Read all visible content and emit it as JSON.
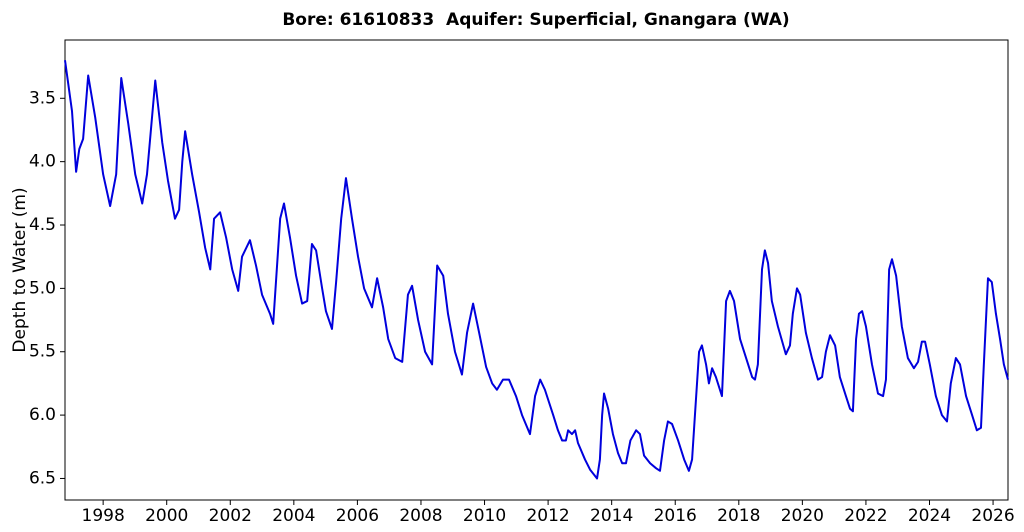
{
  "chart_data": {
    "type": "line",
    "title": "Bore: 61610833  Aquifer: Superficial, Gnangara (WA)",
    "ylabel": "Depth to Water (m)",
    "color": "#0000dd",
    "y_inverted": true,
    "grid": false,
    "xlim": [
      1996.8,
      2026.47
    ],
    "ylim": [
      3.04,
      6.67
    ],
    "xticks": [
      1998,
      2000,
      2002,
      2004,
      2006,
      2008,
      2010,
      2012,
      2014,
      2016,
      2018,
      2020,
      2022,
      2024,
      2026
    ],
    "yticks": [
      3.5,
      {
        "value": 4,
        "label": "4.0"
      },
      4.5,
      {
        "value": 5,
        "label": "5.0"
      },
      5.5,
      {
        "value": 6,
        "label": "6.0"
      },
      6.5
    ],
    "x": [
      1996.8,
      1997.02,
      1997.15,
      1997.25,
      1997.37,
      1997.53,
      1997.75,
      1998.0,
      1998.22,
      1998.41,
      1998.57,
      1998.79,
      1999.01,
      1999.23,
      1999.38,
      1999.64,
      1999.86,
      2000.04,
      2000.26,
      2000.39,
      2000.49,
      2000.58,
      2000.8,
      2001.02,
      2001.21,
      2001.37,
      2001.49,
      2001.68,
      2001.87,
      2002.06,
      2002.25,
      2002.37,
      2002.62,
      2002.81,
      2003.0,
      2003.25,
      2003.35,
      2003.57,
      2003.69,
      2003.88,
      2004.07,
      2004.26,
      2004.42,
      2004.57,
      2004.7,
      2004.89,
      2005.01,
      2005.2,
      2005.33,
      2005.49,
      2005.64,
      2005.83,
      2006.02,
      2006.21,
      2006.46,
      2006.62,
      2006.81,
      2006.97,
      2007.19,
      2007.41,
      2007.59,
      2007.72,
      2007.91,
      2008.13,
      2008.35,
      2008.51,
      2008.7,
      2008.85,
      2009.07,
      2009.29,
      2009.45,
      2009.64,
      2009.83,
      2010.05,
      2010.24,
      2010.39,
      2010.58,
      2010.77,
      2010.99,
      2011.18,
      2011.43,
      2011.59,
      2011.75,
      2011.9,
      2012.16,
      2012.31,
      2012.44,
      2012.56,
      2012.63,
      2012.75,
      2012.85,
      2012.94,
      2013.16,
      2013.32,
      2013.54,
      2013.63,
      2013.7,
      2013.76,
      2013.89,
      2014.04,
      2014.2,
      2014.33,
      2014.45,
      2014.59,
      2014.77,
      2014.89,
      2015.02,
      2015.21,
      2015.4,
      2015.52,
      2015.65,
      2015.77,
      2015.9,
      2016.09,
      2016.28,
      2016.43,
      2016.53,
      2016.62,
      2016.75,
      2016.84,
      2016.97,
      2017.06,
      2017.16,
      2017.28,
      2017.47,
      2017.6,
      2017.72,
      2017.85,
      2018.04,
      2018.23,
      2018.42,
      2018.51,
      2018.6,
      2018.73,
      2018.82,
      2018.92,
      2019.04,
      2019.23,
      2019.48,
      2019.61,
      2019.7,
      2019.83,
      2019.93,
      2020.11,
      2020.3,
      2020.49,
      2020.62,
      2020.74,
      2020.87,
      2021.03,
      2021.18,
      2021.37,
      2021.5,
      2021.59,
      2021.69,
      2021.78,
      2021.88,
      2022.0,
      2022.19,
      2022.38,
      2022.54,
      2022.63,
      2022.73,
      2022.82,
      2022.95,
      2023.13,
      2023.32,
      2023.51,
      2023.64,
      2023.76,
      2023.86,
      2024.01,
      2024.2,
      2024.39,
      2024.55,
      2024.67,
      2024.83,
      2024.96,
      2025.15,
      2025.34,
      2025.49,
      2025.62,
      2025.71,
      2025.84,
      2025.96,
      2026.09,
      2026.22,
      2026.34,
      2026.47
    ],
    "values": [
      3.2,
      3.6,
      4.08,
      3.9,
      3.82,
      3.32,
      3.65,
      4.1,
      4.35,
      4.1,
      3.34,
      3.7,
      4.1,
      4.33,
      4.1,
      3.36,
      3.85,
      4.15,
      4.45,
      4.38,
      4.0,
      3.76,
      4.1,
      4.4,
      4.68,
      4.85,
      4.45,
      4.4,
      4.6,
      4.85,
      5.02,
      4.75,
      4.62,
      4.82,
      5.05,
      5.2,
      5.28,
      4.45,
      4.33,
      4.6,
      4.9,
      5.12,
      5.1,
      4.65,
      4.7,
      5.0,
      5.18,
      5.32,
      4.95,
      4.45,
      4.13,
      4.45,
      4.75,
      5.0,
      5.15,
      4.92,
      5.15,
      5.4,
      5.55,
      5.58,
      5.05,
      4.98,
      5.25,
      5.5,
      5.6,
      4.82,
      4.9,
      5.2,
      5.5,
      5.68,
      5.35,
      5.12,
      5.35,
      5.62,
      5.75,
      5.8,
      5.72,
      5.72,
      5.85,
      6.0,
      6.15,
      5.85,
      5.72,
      5.8,
      6.0,
      6.12,
      6.2,
      6.2,
      6.12,
      6.15,
      6.12,
      6.22,
      6.35,
      6.43,
      6.5,
      6.35,
      6.0,
      5.83,
      5.95,
      6.15,
      6.3,
      6.38,
      6.38,
      6.2,
      6.12,
      6.15,
      6.32,
      6.38,
      6.42,
      6.44,
      6.2,
      6.05,
      6.07,
      6.2,
      6.35,
      6.44,
      6.35,
      6.0,
      5.5,
      5.45,
      5.6,
      5.75,
      5.63,
      5.7,
      5.85,
      5.1,
      5.02,
      5.1,
      5.4,
      5.55,
      5.7,
      5.72,
      5.6,
      4.85,
      4.7,
      4.8,
      5.1,
      5.3,
      5.52,
      5.45,
      5.2,
      5.0,
      5.05,
      5.35,
      5.55,
      5.72,
      5.7,
      5.5,
      5.37,
      5.45,
      5.7,
      5.85,
      5.95,
      5.97,
      5.4,
      5.2,
      5.18,
      5.3,
      5.6,
      5.83,
      5.85,
      5.72,
      4.85,
      4.77,
      4.9,
      5.3,
      5.55,
      5.63,
      5.58,
      5.42,
      5.42,
      5.6,
      5.85,
      6.0,
      6.05,
      5.75,
      5.55,
      5.6,
      5.85,
      6.0,
      6.12,
      6.1,
      5.6,
      4.92,
      4.95,
      5.2,
      5.4,
      5.6,
      5.72
    ]
  }
}
